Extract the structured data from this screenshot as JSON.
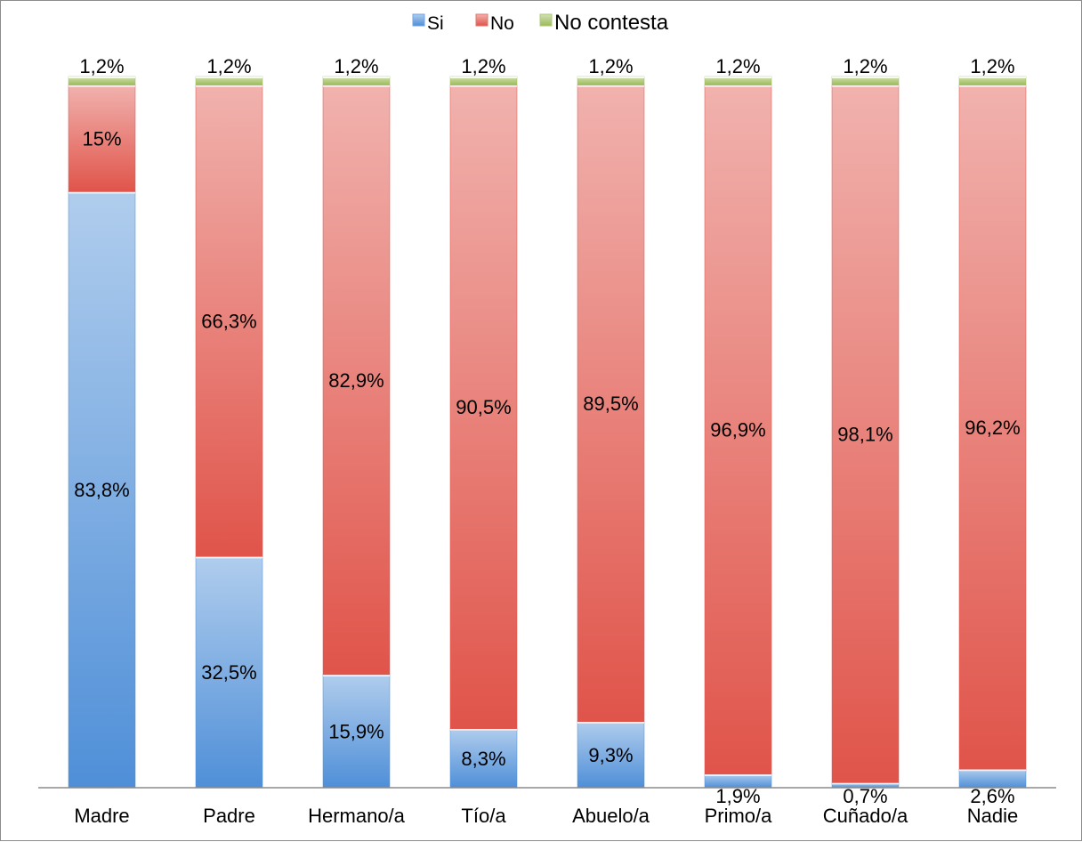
{
  "chart_data": {
    "type": "bar",
    "stacked": true,
    "categories": [
      "Madre",
      "Padre",
      "Hermano/a",
      "Tío/a",
      "Abuelo/a",
      "Primo/a",
      "Cuñado/a",
      "Nadie"
    ],
    "series": [
      {
        "name": "Si",
        "color": "#4f8fd8",
        "values": [
          83.8,
          32.5,
          15.9,
          8.3,
          9.3,
          1.9,
          0.7,
          2.6
        ],
        "labels": [
          "83,8%",
          "32,5%",
          "15,9%",
          "8,3%",
          "9,3%",
          "1,9%",
          "0,7%",
          "2,6%"
        ]
      },
      {
        "name": "No",
        "color": "#e0544a",
        "values": [
          15,
          66.3,
          82.9,
          90.5,
          89.5,
          96.9,
          98.1,
          96.2
        ],
        "labels": [
          "15%",
          "66,3%",
          "82,9%",
          "90,5%",
          "89,5%",
          "96,9%",
          "98,1%",
          "96,2%"
        ]
      },
      {
        "name": "No contesta",
        "color": "#9bbb59",
        "values": [
          1.2,
          1.2,
          1.2,
          1.2,
          1.2,
          1.2,
          1.2,
          1.2
        ],
        "labels": [
          "1,2%",
          "1,2%",
          "1,2%",
          "1,2%",
          "1,2%",
          "1,2%",
          "1,2%",
          "1,2%"
        ]
      }
    ],
    "legend_position": "top",
    "ylim": [
      0,
      100
    ],
    "grid": false,
    "title": "",
    "xlabel": "",
    "ylabel": ""
  }
}
